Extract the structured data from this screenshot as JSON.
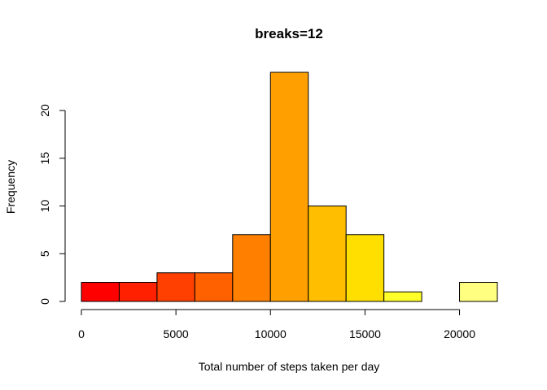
{
  "chart_data": {
    "type": "bar",
    "title": "breaks=12",
    "xlabel": "Total number of steps taken per day",
    "ylabel": "Frequency",
    "bins": [
      {
        "start": 0,
        "end": 2000,
        "count": 2,
        "color": "#FF0000"
      },
      {
        "start": 2000,
        "end": 4000,
        "count": 2,
        "color": "#FF2000"
      },
      {
        "start": 4000,
        "end": 6000,
        "count": 3,
        "color": "#FF4000"
      },
      {
        "start": 6000,
        "end": 8000,
        "count": 3,
        "color": "#FF6000"
      },
      {
        "start": 8000,
        "end": 10000,
        "count": 7,
        "color": "#FF8000"
      },
      {
        "start": 10000,
        "end": 12000,
        "count": 24,
        "color": "#FFA000"
      },
      {
        "start": 12000,
        "end": 14000,
        "count": 10,
        "color": "#FFBF00"
      },
      {
        "start": 14000,
        "end": 16000,
        "count": 7,
        "color": "#FFDF00"
      },
      {
        "start": 16000,
        "end": 18000,
        "count": 1,
        "color": "#FFFF2A"
      },
      {
        "start": 18000,
        "end": 20000,
        "count": 0,
        "color": "#FFFF55"
      },
      {
        "start": 20000,
        "end": 22000,
        "count": 2,
        "color": "#FFFF80"
      }
    ],
    "xticks": [
      0,
      5000,
      10000,
      15000,
      20000
    ],
    "yticks": [
      0,
      5,
      10,
      15,
      20
    ],
    "xlim": [
      0,
      22000
    ],
    "ylim": [
      0,
      24
    ],
    "grid": false,
    "legend": "none"
  }
}
